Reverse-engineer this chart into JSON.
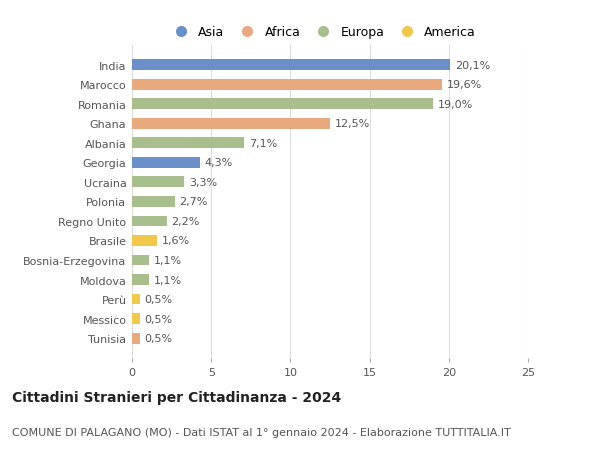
{
  "countries": [
    "India",
    "Marocco",
    "Romania",
    "Ghana",
    "Albania",
    "Georgia",
    "Ucraina",
    "Polonia",
    "Regno Unito",
    "Brasile",
    "Bosnia-Erzegovina",
    "Moldova",
    "Perù",
    "Messico",
    "Tunisia"
  ],
  "values": [
    20.1,
    19.6,
    19.0,
    12.5,
    7.1,
    4.3,
    3.3,
    2.7,
    2.2,
    1.6,
    1.1,
    1.1,
    0.5,
    0.5,
    0.5
  ],
  "labels": [
    "20,1%",
    "19,6%",
    "19,0%",
    "12,5%",
    "7,1%",
    "4,3%",
    "3,3%",
    "2,7%",
    "2,2%",
    "1,6%",
    "1,1%",
    "1,1%",
    "0,5%",
    "0,5%",
    "0,5%"
  ],
  "continents": [
    "Asia",
    "Africa",
    "Europa",
    "Africa",
    "Europa",
    "Asia",
    "Europa",
    "Europa",
    "Europa",
    "America",
    "Europa",
    "Europa",
    "America",
    "America",
    "Africa"
  ],
  "continent_colors": {
    "Asia": "#6b8fc9",
    "Africa": "#e8aa7c",
    "Europa": "#a8be8c",
    "America": "#f0c84a"
  },
  "legend_order": [
    "Asia",
    "Africa",
    "Europa",
    "America"
  ],
  "xlim": [
    0,
    25
  ],
  "xticks": [
    0,
    5,
    10,
    15,
    20,
    25
  ],
  "title": "Cittadini Stranieri per Cittadinanza - 2024",
  "subtitle": "COMUNE DI PALAGANO (MO) - Dati ISTAT al 1° gennaio 2024 - Elaborazione TUTTITALIA.IT",
  "bg_color": "#ffffff",
  "bar_height": 0.55,
  "title_fontsize": 10,
  "subtitle_fontsize": 8,
  "label_fontsize": 8,
  "tick_fontsize": 8,
  "legend_fontsize": 9
}
